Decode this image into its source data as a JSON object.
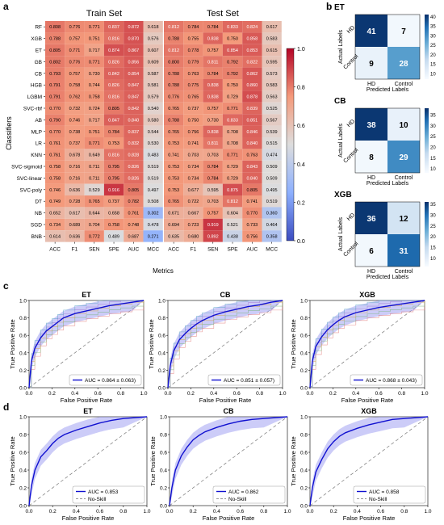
{
  "panels": {
    "a": {
      "letter": "a",
      "xlabel": "Metrics",
      "ylabel": "Classifiers",
      "colorbar_ticks": [
        "0.0",
        "0.2",
        "0.4",
        "0.6",
        "0.8",
        "1.0"
      ]
    },
    "b": {
      "letter": "b",
      "xlabel": "Predicted Labels",
      "ylabel": "Actual Labels",
      "x_categories": [
        "HD",
        "Control"
      ],
      "y_categories": [
        "HD",
        "Control"
      ]
    },
    "c": {
      "letter": "c",
      "xlabel": "False Positive Rate",
      "ylabel": "True Positive Rate"
    },
    "d": {
      "letter": "d",
      "xlabel": "False Positive Rate",
      "ylabel": "True Positive Rate",
      "noskill_label": "No-Skill"
    }
  },
  "chart_data": [
    {
      "type": "heatmap",
      "panel": "a",
      "title": "Train Set",
      "x": [
        "ACC",
        "F1",
        "SEN",
        "SPE",
        "AUC",
        "MCC"
      ],
      "y": [
        "RF",
        "XGB",
        "ET",
        "GB",
        "CB",
        "HGB",
        "LGBM",
        "SVC-rbf",
        "AB",
        "MLP",
        "LR",
        "KNN",
        "SVC-sigmoid",
        "SVC-linear",
        "SVC-poly",
        "DT",
        "NB",
        "SGD",
        "BNB"
      ],
      "values": [
        [
          0.808,
          0.776,
          0.771,
          0.837,
          0.872,
          0.618
        ],
        [
          0.788,
          0.757,
          0.751,
          0.816,
          0.87,
          0.576
        ],
        [
          0.805,
          0.771,
          0.717,
          0.874,
          0.867,
          0.607
        ],
        [
          0.802,
          0.776,
          0.771,
          0.826,
          0.856,
          0.609
        ],
        [
          0.793,
          0.757,
          0.73,
          0.842,
          0.854,
          0.587
        ],
        [
          0.791,
          0.758,
          0.744,
          0.826,
          0.847,
          0.581
        ],
        [
          0.791,
          0.762,
          0.758,
          0.816,
          0.847,
          0.579
        ],
        [
          0.77,
          0.732,
          0.724,
          0.805,
          0.842,
          0.54
        ],
        [
          0.79,
          0.746,
          0.717,
          0.847,
          0.84,
          0.58
        ],
        [
          0.77,
          0.738,
          0.751,
          0.784,
          0.837,
          0.544
        ],
        [
          0.761,
          0.737,
          0.771,
          0.753,
          0.832,
          0.53
        ],
        [
          0.761,
          0.678,
          0.649,
          0.816,
          0.828,
          0.483
        ],
        [
          0.758,
          0.716,
          0.711,
          0.795,
          0.826,
          0.519
        ],
        [
          0.758,
          0.716,
          0.711,
          0.795,
          0.826,
          0.519
        ],
        [
          0.746,
          0.636,
          0.529,
          0.916,
          0.805,
          0.497
        ],
        [
          0.749,
          0.728,
          0.765,
          0.737,
          0.782,
          0.508
        ],
        [
          0.652,
          0.617,
          0.644,
          0.658,
          0.761,
          0.302
        ],
        [
          0.734,
          0.689,
          0.704,
          0.758,
          0.748,
          0.478
        ],
        [
          0.614,
          0.636,
          0.772,
          0.489,
          0.687,
          0.271
        ]
      ],
      "colormap": "coolwarm",
      "vmin": 0,
      "vmax": 1
    },
    {
      "type": "heatmap",
      "panel": "a",
      "title": "Test Set",
      "x": [
        "ACC",
        "F1",
        "SEN",
        "SPE",
        "AUC",
        "MCC"
      ],
      "y": [
        "RF",
        "XGB",
        "ET",
        "GB",
        "CB",
        "HGB",
        "LGBM",
        "SVC-rbf",
        "AB",
        "MLP",
        "LR",
        "KNN",
        "SVC-sigmoid",
        "SVC-linear",
        "SVC-poly",
        "DT",
        "NB",
        "SGD",
        "BNB"
      ],
      "values": [
        [
          0.812,
          0.784,
          0.784,
          0.833,
          0.824,
          0.617
        ],
        [
          0.788,
          0.755,
          0.838,
          0.75,
          0.858,
          0.583
        ],
        [
          0.812,
          0.778,
          0.757,
          0.854,
          0.853,
          0.615
        ],
        [
          0.8,
          0.779,
          0.811,
          0.792,
          0.822,
          0.595
        ],
        [
          0.788,
          0.763,
          0.784,
          0.792,
          0.862,
          0.573
        ],
        [
          0.788,
          0.775,
          0.838,
          0.75,
          0.86,
          0.583
        ],
        [
          0.776,
          0.765,
          0.838,
          0.729,
          0.878,
          0.563
        ],
        [
          0.765,
          0.737,
          0.757,
          0.771,
          0.839,
          0.525
        ],
        [
          0.788,
          0.75,
          0.73,
          0.833,
          0.851,
          0.567
        ],
        [
          0.765,
          0.756,
          0.838,
          0.708,
          0.846,
          0.539
        ],
        [
          0.753,
          0.741,
          0.811,
          0.708,
          0.84,
          0.515
        ],
        [
          0.741,
          0.703,
          0.703,
          0.771,
          0.763,
          0.474
        ],
        [
          0.753,
          0.734,
          0.784,
          0.729,
          0.843,
          0.509
        ],
        [
          0.753,
          0.734,
          0.784,
          0.729,
          0.84,
          0.509
        ],
        [
          0.753,
          0.677,
          0.595,
          0.875,
          0.805,
          0.495
        ],
        [
          0.765,
          0.722,
          0.703,
          0.812,
          0.741,
          0.519
        ],
        [
          0.671,
          0.667,
          0.757,
          0.604,
          0.77,
          0.36
        ],
        [
          0.694,
          0.723,
          0.919,
          0.521,
          0.733,
          0.464
        ],
        [
          0.635,
          0.68,
          0.892,
          0.438,
          0.756,
          0.358
        ]
      ],
      "colormap": "coolwarm",
      "vmin": 0,
      "vmax": 1
    },
    {
      "type": "heatmap",
      "panel": "b",
      "title": "ET",
      "matrix": [
        [
          41,
          7
        ],
        [
          9,
          28
        ]
      ],
      "colorbar_ticks": [
        10,
        15,
        20,
        25,
        30,
        35,
        40
      ],
      "colormap": "Blues"
    },
    {
      "type": "heatmap",
      "panel": "b",
      "title": "CB",
      "matrix": [
        [
          38,
          10
        ],
        [
          8,
          29
        ]
      ],
      "colorbar_ticks": [
        10,
        15,
        20,
        25,
        30,
        35
      ],
      "colormap": "Blues"
    },
    {
      "type": "heatmap",
      "panel": "b",
      "title": "XGB",
      "matrix": [
        [
          36,
          12
        ],
        [
          6,
          31
        ]
      ],
      "colorbar_ticks": [
        10,
        15,
        20,
        25,
        30,
        35
      ],
      "colormap": "Blues"
    },
    {
      "type": "line",
      "panel": "c",
      "title": "ET",
      "xlim": [
        0,
        1
      ],
      "ylim": [
        0,
        1
      ],
      "x_ticks": [
        "0.0",
        "0.2",
        "0.4",
        "0.6",
        "0.8",
        "1.0"
      ],
      "y_ticks": [
        "0.0",
        "0.2",
        "0.4",
        "0.6",
        "0.8",
        "1.0"
      ],
      "legend": "AUC = 0.864 ± 0.063)",
      "mean_curve": [
        [
          0,
          0
        ],
        [
          0.02,
          0.3
        ],
        [
          0.05,
          0.45
        ],
        [
          0.1,
          0.57
        ],
        [
          0.15,
          0.65
        ],
        [
          0.2,
          0.7
        ],
        [
          0.25,
          0.75
        ],
        [
          0.3,
          0.8
        ],
        [
          0.4,
          0.85
        ],
        [
          0.5,
          0.88
        ],
        [
          0.6,
          0.91
        ],
        [
          0.7,
          0.94
        ],
        [
          0.8,
          0.96
        ],
        [
          0.9,
          0.98
        ],
        [
          1,
          1
        ]
      ]
    },
    {
      "type": "line",
      "panel": "c",
      "title": "CB",
      "xlim": [
        0,
        1
      ],
      "ylim": [
        0,
        1
      ],
      "x_ticks": [
        "0.0",
        "0.2",
        "0.4",
        "0.6",
        "0.8",
        "1.0"
      ],
      "y_ticks": [
        "0.0",
        "0.2",
        "0.4",
        "0.6",
        "0.8",
        "1.0"
      ],
      "legend": "AUC = 0.851 ± 0.057)",
      "mean_curve": [
        [
          0,
          0
        ],
        [
          0.02,
          0.25
        ],
        [
          0.05,
          0.42
        ],
        [
          0.1,
          0.55
        ],
        [
          0.15,
          0.62
        ],
        [
          0.2,
          0.68
        ],
        [
          0.25,
          0.73
        ],
        [
          0.3,
          0.77
        ],
        [
          0.4,
          0.83
        ],
        [
          0.5,
          0.87
        ],
        [
          0.6,
          0.9
        ],
        [
          0.7,
          0.93
        ],
        [
          0.8,
          0.95
        ],
        [
          0.9,
          0.98
        ],
        [
          1,
          1
        ]
      ]
    },
    {
      "type": "line",
      "panel": "c",
      "title": "XGB",
      "xlim": [
        0,
        1
      ],
      "ylim": [
        0,
        1
      ],
      "x_ticks": [
        "0.0",
        "0.2",
        "0.4",
        "0.6",
        "0.8",
        "1.0"
      ],
      "y_ticks": [
        "0.0",
        "0.2",
        "0.4",
        "0.6",
        "0.8",
        "1.0"
      ],
      "legend": "AUC = 0.868 ± 0.043)",
      "mean_curve": [
        [
          0,
          0
        ],
        [
          0.02,
          0.3
        ],
        [
          0.05,
          0.47
        ],
        [
          0.1,
          0.58
        ],
        [
          0.15,
          0.66
        ],
        [
          0.2,
          0.72
        ],
        [
          0.25,
          0.77
        ],
        [
          0.3,
          0.81
        ],
        [
          0.4,
          0.86
        ],
        [
          0.5,
          0.89
        ],
        [
          0.6,
          0.92
        ],
        [
          0.7,
          0.94
        ],
        [
          0.8,
          0.96
        ],
        [
          0.9,
          0.98
        ],
        [
          1,
          1
        ]
      ]
    },
    {
      "type": "line",
      "panel": "d",
      "title": "ET",
      "xlim": [
        0,
        1
      ],
      "ylim": [
        0,
        1
      ],
      "x_ticks": [
        "0.0",
        "0.2",
        "0.4",
        "0.6",
        "0.8",
        "1.0"
      ],
      "y_ticks": [
        "0.0",
        "0.2",
        "0.4",
        "0.6",
        "0.8",
        "1.0"
      ],
      "legend": "AUC = 0.853",
      "curve": [
        [
          0,
          0
        ],
        [
          0.02,
          0.22
        ],
        [
          0.05,
          0.4
        ],
        [
          0.1,
          0.55
        ],
        [
          0.15,
          0.62
        ],
        [
          0.2,
          0.7
        ],
        [
          0.25,
          0.76
        ],
        [
          0.3,
          0.8
        ],
        [
          0.4,
          0.85
        ],
        [
          0.5,
          0.89
        ],
        [
          0.6,
          0.93
        ],
        [
          0.7,
          0.96
        ],
        [
          0.8,
          0.98
        ],
        [
          1,
          1
        ]
      ]
    },
    {
      "type": "line",
      "panel": "d",
      "title": "CB",
      "xlim": [
        0,
        1
      ],
      "ylim": [
        0,
        1
      ],
      "x_ticks": [
        "0.0",
        "0.2",
        "0.4",
        "0.6",
        "0.8",
        "1.0"
      ],
      "y_ticks": [
        "0.0",
        "0.2",
        "0.4",
        "0.6",
        "0.8",
        "1.0"
      ],
      "legend": "AUC = 0.862",
      "curve": [
        [
          0,
          0
        ],
        [
          0.02,
          0.2
        ],
        [
          0.05,
          0.4
        ],
        [
          0.1,
          0.56
        ],
        [
          0.15,
          0.66
        ],
        [
          0.2,
          0.74
        ],
        [
          0.25,
          0.79
        ],
        [
          0.3,
          0.83
        ],
        [
          0.4,
          0.88
        ],
        [
          0.5,
          0.92
        ],
        [
          0.6,
          0.95
        ],
        [
          0.7,
          0.97
        ],
        [
          0.8,
          0.98
        ],
        [
          1,
          1
        ]
      ]
    },
    {
      "type": "line",
      "panel": "d",
      "title": "XGB",
      "xlim": [
        0,
        1
      ],
      "ylim": [
        0,
        1
      ],
      "x_ticks": [
        "0.0",
        "0.2",
        "0.4",
        "0.6",
        "0.8",
        "1.0"
      ],
      "y_ticks": [
        "0.0",
        "0.2",
        "0.4",
        "0.6",
        "0.8",
        "1.0"
      ],
      "legend": "AUC = 0.858",
      "curve": [
        [
          0,
          0
        ],
        [
          0.02,
          0.2
        ],
        [
          0.05,
          0.38
        ],
        [
          0.1,
          0.52
        ],
        [
          0.15,
          0.64
        ],
        [
          0.2,
          0.72
        ],
        [
          0.25,
          0.78
        ],
        [
          0.3,
          0.82
        ],
        [
          0.4,
          0.87
        ],
        [
          0.5,
          0.91
        ],
        [
          0.6,
          0.94
        ],
        [
          0.7,
          0.97
        ],
        [
          0.8,
          0.98
        ],
        [
          1,
          1
        ]
      ]
    }
  ]
}
